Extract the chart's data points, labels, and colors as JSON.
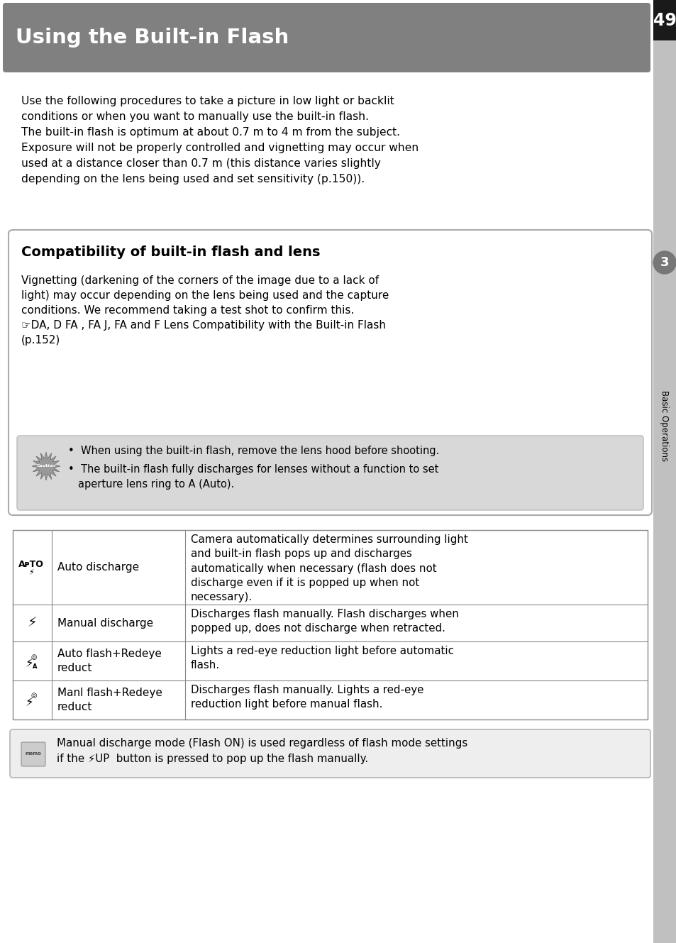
{
  "page_bg": "#ffffff",
  "sidebar_bg": "#c0c0c0",
  "header_bg": "#808080",
  "header_text": "Using the Built-in Flash",
  "header_text_color": "#ffffff",
  "page_number": "49",
  "page_number_bg": "#1a1a1a",
  "page_number_color": "#ffffff",
  "chapter_number": "3",
  "chapter_label": "Basic Operations",
  "body_text_color": "#000000",
  "intro_text": "Use the following procedures to take a picture in low light or backlit\nconditions or when you want to manually use the built-in flash.\nThe built-in flash is optimum at about 0.7 m to 4 m from the subject.\nExposure will not be properly controlled and vignetting may occur when\nused at a distance closer than 0.7 m (this distance varies slightly\ndepending on the lens being used and set sensitivity (p.150)).",
  "compat_box_bg": "#ffffff",
  "compat_box_border": "#aaaaaa",
  "compat_title": "Compatibility of built-in flash and lens",
  "compat_body_line1": "Vignetting (darkening of the corners of the image due to a lack of",
  "compat_body_line2": "light) may occur depending on the lens being used and the capture",
  "compat_body_line3": "conditions. We recommend taking a test shot to confirm this.",
  "compat_body_line4": "☞DA, D FA , FA J, FA and F Lens Compatibility with the Built-in Flash",
  "compat_body_line5": "(p.152)",
  "caution_bg": "#d8d8d8",
  "caution_text1": "When using the built-in flash, remove the lens hood before shooting.",
  "caution_text2": "The built-in flash fully discharges for lenses without a function to set",
  "caution_text3": "aperture lens ring to A (Auto).",
  "table_rows": [
    {
      "icon_text": "AᴘTO",
      "label": "Auto discharge",
      "description": "Camera automatically determines surrounding light\nand built-in flash pops up and discharges\nautomatically when necessary (flash does not\ndischarge even if it is popped up when not\nnecessary)."
    },
    {
      "icon_text": "⚡",
      "label": "Manual discharge",
      "description": "Discharges flash manually. Flash discharges when\npopped up, does not discharge when retracted."
    },
    {
      "icon_text": "⚡",
      "label": "Auto flash+Redeye\nreduct",
      "description": "Lights a red-eye reduction light before automatic\nflash."
    },
    {
      "icon_text": "⚡",
      "label": "Manl flash+Redeye\nreduct",
      "description": "Discharges flash manually. Lights a red-eye\nreduction light before manual flash."
    }
  ],
  "memo_text_line1": "Manual discharge mode (Flash ON) is used regardless of flash mode settings",
  "memo_text_line2": "if the ⚡UP  button is pressed to pop up the flash manually."
}
